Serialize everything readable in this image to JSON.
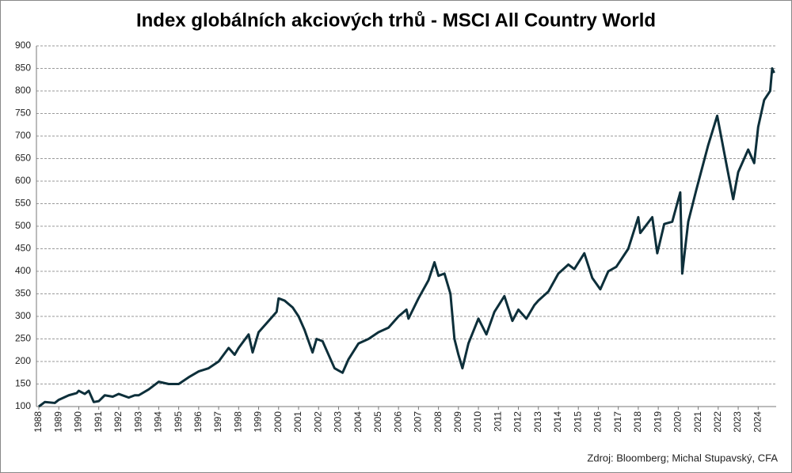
{
  "chart_data": {
    "type": "line",
    "title": "Index globálních akciových trhů - MSCI All Country World",
    "source": "Zdroj: Bloomberg; Michal Stupavský, CFA",
    "xlim": [
      1988,
      2024.9
    ],
    "xticks": [
      1988,
      1989,
      1990,
      1991,
      1992,
      1993,
      1994,
      1995,
      1996,
      1997,
      1998,
      1999,
      2000,
      2001,
      2002,
      2003,
      2004,
      2005,
      2006,
      2007,
      2008,
      2009,
      2010,
      2011,
      2012,
      2013,
      2014,
      2015,
      2016,
      2017,
      2018,
      2019,
      2020,
      2021,
      2022,
      2023,
      2024
    ],
    "ylim": [
      100,
      900
    ],
    "yticks": [
      100,
      150,
      200,
      250,
      300,
      350,
      400,
      450,
      500,
      550,
      600,
      650,
      700,
      750,
      800,
      850,
      900
    ],
    "grid": true,
    "series": [
      {
        "color": "#0d2f3a",
        "x": [
          1988.0,
          1988.3,
          1988.8,
          1989.0,
          1989.5,
          1989.9,
          1990.0,
          1990.3,
          1990.5,
          1990.75,
          1991.0,
          1991.3,
          1991.7,
          1992.0,
          1992.5,
          1992.8,
          1993.0,
          1993.5,
          1994.0,
          1994.5,
          1995.0,
          1995.5,
          1996.0,
          1996.5,
          1997.0,
          1997.5,
          1997.8,
          1998.0,
          1998.5,
          1998.7,
          1999.0,
          1999.5,
          1999.9,
          2000.0,
          2000.3,
          2000.7,
          2001.0,
          2001.3,
          2001.7,
          2001.9,
          2002.2,
          2002.5,
          2002.8,
          2003.0,
          2003.2,
          2003.5,
          2004.0,
          2004.5,
          2005.0,
          2005.5,
          2006.0,
          2006.4,
          2006.5,
          2007.0,
          2007.5,
          2007.8,
          2008.0,
          2008.3,
          2008.6,
          2008.8,
          2009.0,
          2009.2,
          2009.5,
          2010.0,
          2010.4,
          2010.8,
          2011.3,
          2011.7,
          2012.0,
          2012.4,
          2012.8,
          2013.0,
          2013.5,
          2014.0,
          2014.5,
          2014.8,
          2015.3,
          2015.7,
          2016.1,
          2016.5,
          2016.9,
          2017.5,
          2018.0,
          2018.1,
          2018.7,
          2018.95,
          2019.3,
          2019.7,
          2020.1,
          2020.2,
          2020.5,
          2020.9,
          2021.5,
          2021.95,
          2022.4,
          2022.75,
          2023.0,
          2023.5,
          2023.8,
          2024.0,
          2024.3,
          2024.6,
          2024.7,
          2024.8
        ],
        "values": [
          100,
          110,
          108,
          115,
          125,
          130,
          135,
          128,
          135,
          110,
          112,
          125,
          122,
          128,
          120,
          125,
          125,
          138,
          155,
          150,
          150,
          165,
          178,
          185,
          200,
          230,
          215,
          230,
          260,
          220,
          265,
          290,
          310,
          340,
          335,
          320,
          300,
          270,
          220,
          250,
          245,
          215,
          185,
          180,
          175,
          205,
          240,
          250,
          265,
          275,
          300,
          315,
          295,
          340,
          380,
          420,
          390,
          395,
          350,
          250,
          215,
          185,
          240,
          295,
          260,
          310,
          345,
          290,
          315,
          295,
          325,
          335,
          355,
          395,
          415,
          405,
          440,
          385,
          360,
          400,
          410,
          450,
          520,
          485,
          520,
          440,
          505,
          510,
          575,
          395,
          510,
          580,
          680,
          745,
          640,
          560,
          620,
          670,
          640,
          720,
          780,
          800,
          850,
          840
        ]
      }
    ]
  }
}
